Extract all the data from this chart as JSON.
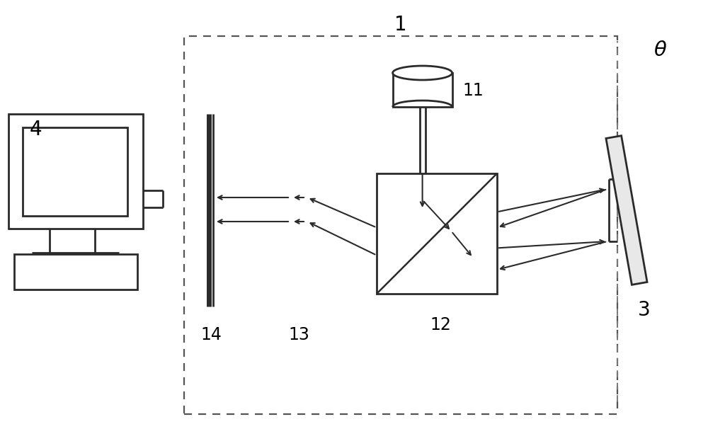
{
  "background_color": "#ffffff",
  "lc": "#2a2a2a",
  "label_1": "1",
  "label_3": "3",
  "label_4": "4",
  "label_11": "11",
  "label_12": "12",
  "label_13": "13",
  "label_14": "14",
  "label_theta": "θ",
  "figw": 10.0,
  "figh": 6.23,
  "dpi": 100
}
